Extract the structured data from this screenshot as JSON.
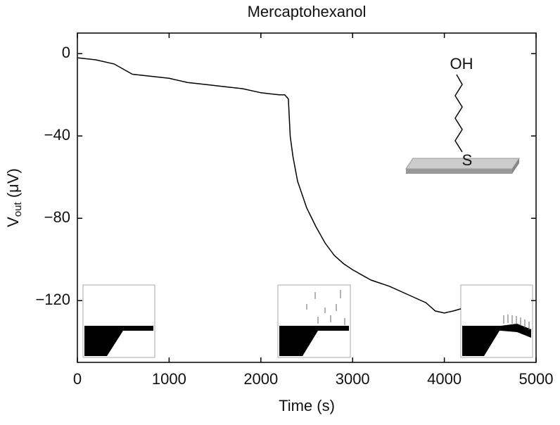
{
  "chart_data": {
    "type": "line",
    "title": "Mercaptohexanol",
    "x_label": "Time (s)",
    "y_label_parts": [
      "V",
      "out",
      " (μV)"
    ],
    "annotations": [
      "OH",
      "S"
    ],
    "x": [
      0,
      200,
      400,
      600,
      800,
      1000,
      1200,
      1400,
      1600,
      1800,
      2000,
      2200,
      2260,
      2300,
      2320,
      2350,
      2400,
      2500,
      2600,
      2700,
      2800,
      2900,
      3000,
      3200,
      3400,
      3600,
      3800,
      3900,
      4000,
      4100,
      4180
    ],
    "series": [
      {
        "name": "Vout",
        "color": "#000000",
        "values": [
          -2,
          -3,
          -5,
          -10,
          -11,
          -12,
          -14,
          -15,
          -16,
          -17,
          -19,
          -20,
          -20,
          -22,
          -40,
          -50,
          -62,
          -75,
          -84,
          -92,
          -98,
          -102,
          -105,
          -110,
          -113,
          -117,
          -121,
          -125,
          -126,
          -125,
          -124
        ]
      }
    ],
    "xlim": [
      0,
      5000
    ],
    "ylim": [
      -150,
      10
    ],
    "xticks": [
      0,
      1000,
      2000,
      3000,
      4000,
      5000
    ],
    "yticks": [
      0,
      {
        "value": -40,
        "label": "−40"
      },
      {
        "value": -80,
        "label": "−80"
      },
      {
        "value": -120,
        "label": "−120"
      }
    ],
    "grid": false
  }
}
